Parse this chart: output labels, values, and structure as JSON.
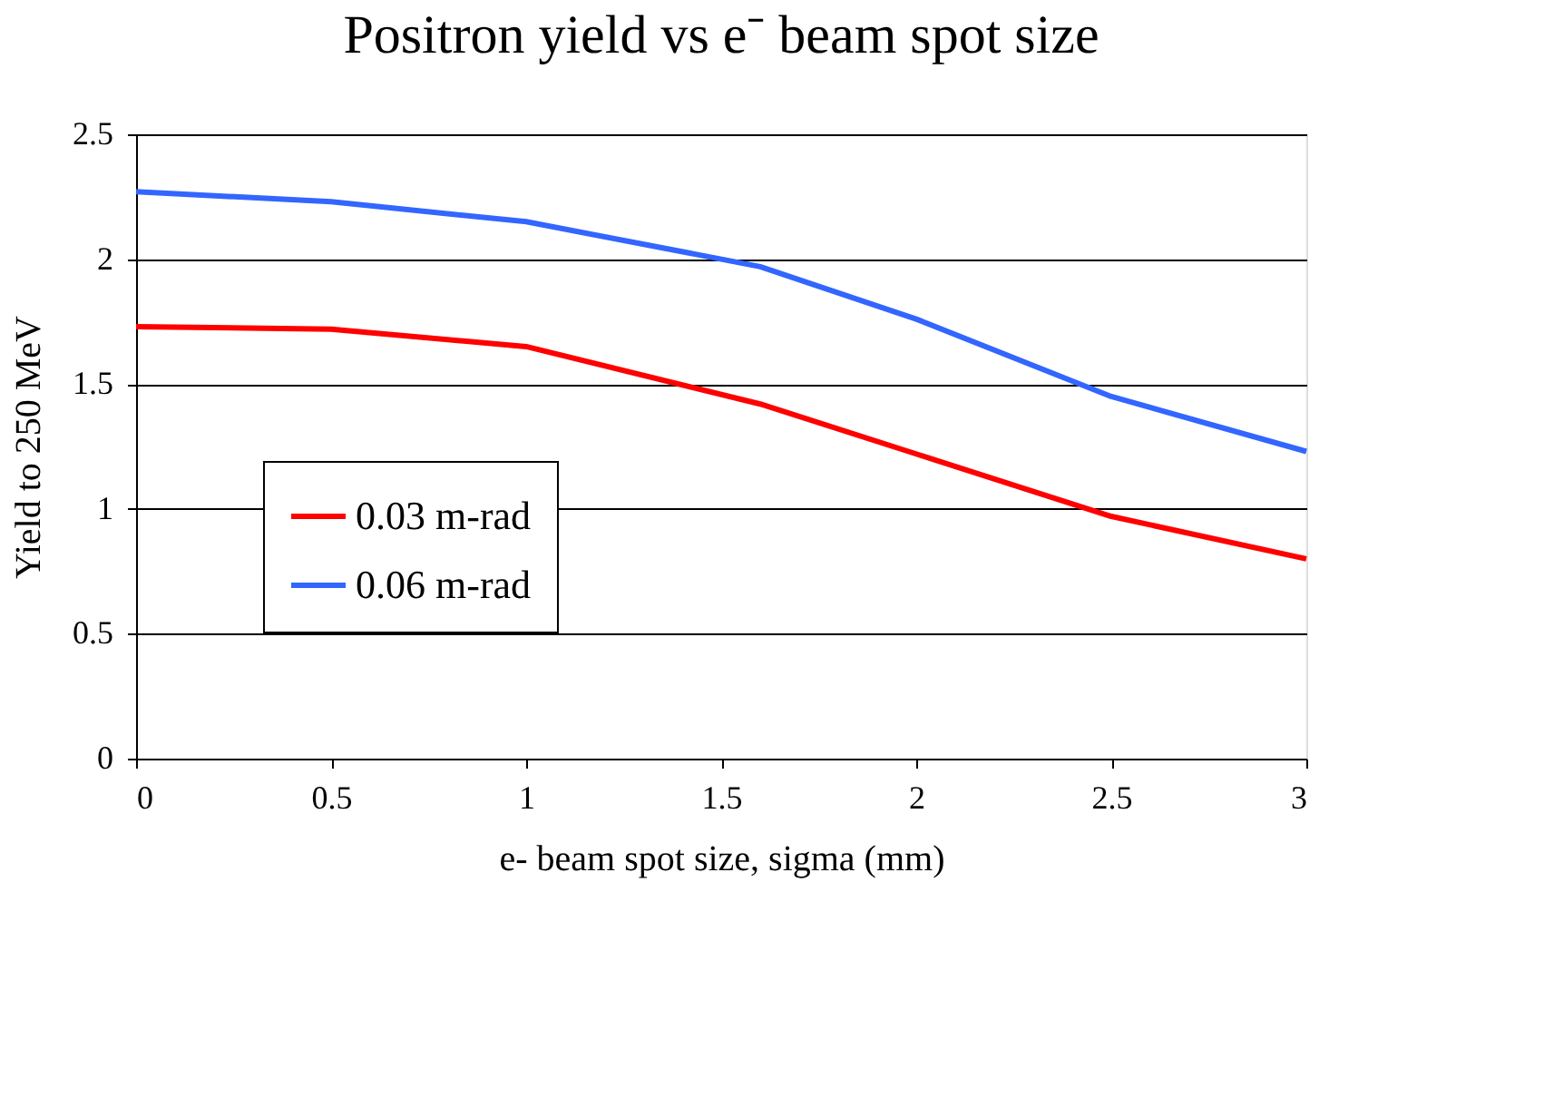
{
  "chart_data": {
    "type": "line",
    "title": "Positron yield vs e⁻ beam spot size",
    "xlabel": "e- beam spot size, sigma (mm)",
    "ylabel": "Yield to 250 MeV",
    "x": [
      0,
      0.5,
      1,
      1.6,
      2,
      2.5,
      3
    ],
    "series": [
      {
        "name": "0.03 m-rad",
        "color": "#ff0000",
        "values": [
          1.73,
          1.72,
          1.65,
          1.42,
          1.22,
          0.97,
          0.8
        ]
      },
      {
        "name": "0.06 m-rad",
        "color": "#3366ff",
        "values": [
          2.27,
          2.23,
          2.15,
          1.97,
          1.76,
          1.45,
          1.23
        ]
      }
    ],
    "xlim": [
      0,
      3
    ],
    "xticks": [
      0,
      0.5,
      1,
      1.5,
      2,
      2.5,
      3
    ],
    "ylim": [
      0,
      2.5
    ],
    "yticks": [
      0,
      0.5,
      1,
      1.5,
      2,
      2.5
    ],
    "grid": "y",
    "legend": "bottom left",
    "marker": "none",
    "line_style": "solid"
  }
}
